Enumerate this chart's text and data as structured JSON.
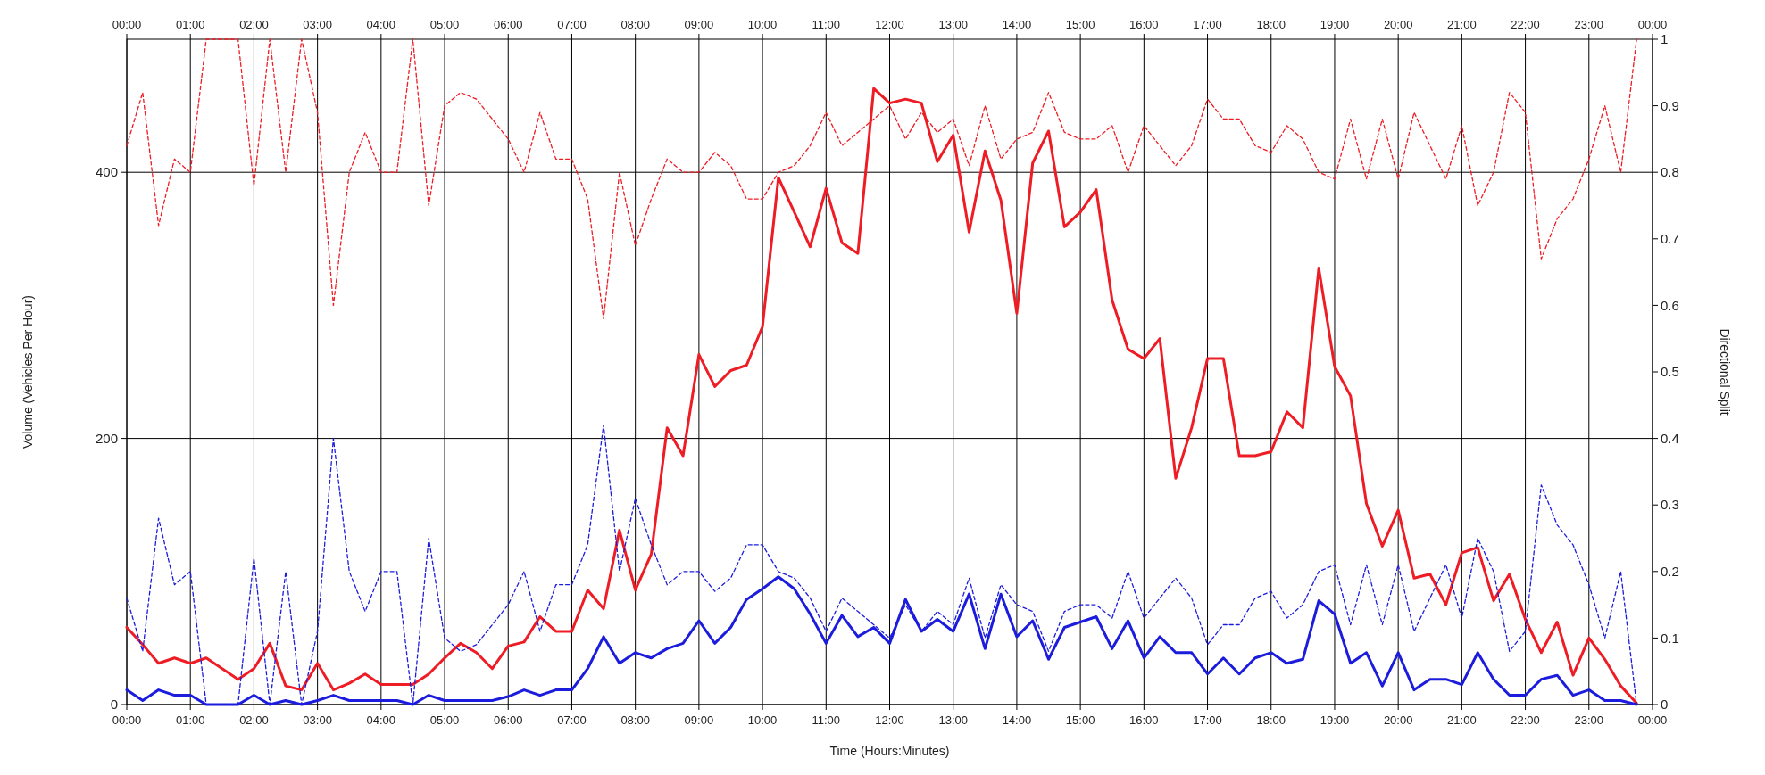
{
  "chart_data": {
    "type": "line",
    "xlabel": "Time (Hours:Minutes)",
    "ylabel": "Volume (Vehicles Per Hour)",
    "y2label": "Directional Split",
    "x": [
      0,
      0.25,
      0.5,
      0.75,
      1,
      1.25,
      1.5,
      1.75,
      2,
      2.25,
      2.5,
      2.75,
      3,
      3.25,
      3.5,
      3.75,
      4,
      4.25,
      4.5,
      4.75,
      5,
      5.25,
      5.5,
      5.75,
      6,
      6.25,
      6.5,
      6.75,
      7,
      7.25,
      7.5,
      7.75,
      8,
      8.25,
      8.5,
      8.75,
      9,
      9.25,
      9.5,
      9.75,
      10,
      10.25,
      10.5,
      10.75,
      11,
      11.25,
      11.5,
      11.75,
      12,
      12.25,
      12.5,
      12.75,
      13,
      13.25,
      13.5,
      13.75,
      14,
      14.25,
      14.5,
      14.75,
      15,
      15.25,
      15.5,
      15.75,
      16,
      16.25,
      16.5,
      16.75,
      17,
      17.25,
      17.5,
      17.75,
      18,
      18.25,
      18.5,
      18.75,
      19,
      19.25,
      19.5,
      19.75,
      20,
      20.25,
      20.5,
      20.75,
      21,
      21.25,
      21.5,
      21.75,
      22,
      22.25,
      22.5,
      22.75,
      23,
      23.25,
      23.5,
      23.75
    ],
    "series": [
      {
        "color": "#ee1c24",
        "line_style": "solid",
        "values": [
          58,
          45,
          31,
          35,
          31,
          35,
          27,
          19,
          27,
          46,
          14,
          11,
          31,
          11,
          16,
          23,
          15,
          15,
          15,
          23,
          35,
          46,
          39,
          27,
          44,
          47,
          66,
          55,
          55,
          86,
          72,
          131,
          86,
          113,
          208,
          187,
          263,
          239,
          251,
          255,
          284,
          396,
          370,
          344,
          388,
          347,
          339,
          463,
          452,
          455,
          452,
          408,
          428,
          355,
          416,
          379,
          294,
          407,
          431,
          359,
          370,
          387,
          304,
          267,
          260,
          275,
          170,
          208,
          260,
          260,
          187,
          187,
          190,
          220,
          208,
          328,
          254,
          232,
          151,
          119,
          146,
          95,
          98,
          75,
          114,
          118,
          78,
          98,
          64,
          39,
          62,
          22,
          50,
          34,
          14,
          1
        ]
      },
      {
        "color": "#1c1cdd",
        "line_style": "solid",
        "values": [
          11,
          3,
          11,
          7,
          7,
          0,
          0,
          0,
          7,
          0,
          3,
          0,
          3,
          7,
          3,
          3,
          3,
          3,
          0,
          7,
          3,
          3,
          3,
          3,
          6,
          11,
          7,
          11,
          11,
          27,
          51,
          31,
          39,
          35,
          42,
          46,
          63,
          46,
          58,
          79,
          87,
          96,
          87,
          68,
          46,
          67,
          51,
          58,
          46,
          79,
          55,
          64,
          55,
          83,
          42,
          83,
          51,
          63,
          34,
          58,
          62,
          66,
          42,
          63,
          35,
          51,
          39,
          39,
          23,
          35,
          23,
          35,
          39,
          31,
          34,
          78,
          68,
          31,
          39,
          14,
          39,
          11,
          19,
          19,
          15,
          39,
          19,
          7,
          7,
          19,
          22,
          7,
          11,
          3,
          3,
          0
        ]
      },
      {
        "color": "#ee1c24",
        "line_style": "dashed",
        "axis": "y2",
        "values": [
          0.84,
          0.92,
          0.72,
          0.82,
          0.8,
          1,
          1,
          1,
          0.78,
          1,
          0.8,
          1,
          0.89,
          0.6,
          0.8,
          0.86,
          0.8,
          0.8,
          1,
          0.75,
          0.9,
          0.92,
          0.91,
          0.88,
          0.85,
          0.8,
          0.89,
          0.82,
          0.82,
          0.76,
          0.58,
          0.8,
          0.69,
          0.76,
          0.82,
          0.8,
          0.8,
          0.83,
          0.81,
          0.76,
          0.76,
          0.8,
          0.81,
          0.84,
          0.89,
          0.84,
          0.86,
          0.88,
          0.9,
          0.85,
          0.89,
          0.86,
          0.88,
          0.81,
          0.9,
          0.82,
          0.85,
          0.86,
          0.92,
          0.86,
          0.85,
          0.85,
          0.87,
          0.8,
          0.87,
          0.84,
          0.81,
          0.84,
          0.91,
          0.88,
          0.88,
          0.84,
          0.83,
          0.87,
          0.85,
          0.8,
          0.79,
          0.88,
          0.79,
          0.88,
          0.79,
          0.89,
          0.84,
          0.79,
          0.87,
          0.75,
          0.8,
          0.92,
          0.89,
          0.67,
          0.73,
          0.76,
          0.82,
          0.9,
          0.8,
          1
        ]
      },
      {
        "color": "#1c1cdd",
        "line_style": "dashed",
        "axis": "y2",
        "values": [
          0.16,
          0.08,
          0.28,
          0.18,
          0.2,
          0,
          0,
          0,
          0.22,
          0,
          0.2,
          0,
          0.11,
          0.4,
          0.2,
          0.14,
          0.2,
          0.2,
          0,
          0.25,
          0.1,
          0.08,
          0.09,
          0.12,
          0.15,
          0.2,
          0.11,
          0.18,
          0.18,
          0.24,
          0.42,
          0.2,
          0.31,
          0.24,
          0.18,
          0.2,
          0.2,
          0.17,
          0.19,
          0.24,
          0.24,
          0.2,
          0.19,
          0.16,
          0.11,
          0.16,
          0.14,
          0.12,
          0.1,
          0.15,
          0.11,
          0.14,
          0.12,
          0.19,
          0.1,
          0.18,
          0.15,
          0.14,
          0.08,
          0.14,
          0.15,
          0.15,
          0.13,
          0.2,
          0.13,
          0.16,
          0.19,
          0.16,
          0.09,
          0.12,
          0.12,
          0.16,
          0.17,
          0.13,
          0.15,
          0.2,
          0.21,
          0.12,
          0.21,
          0.12,
          0.21,
          0.11,
          0.16,
          0.21,
          0.13,
          0.25,
          0.2,
          0.08,
          0.11,
          0.33,
          0.27,
          0.24,
          0.18,
          0.1,
          0.2,
          0
        ]
      }
    ],
    "xlim": [
      0,
      24
    ],
    "xticks": [
      {
        "value": 0,
        "label": "00:00"
      },
      {
        "value": 1,
        "label": "01:00"
      },
      {
        "value": 2,
        "label": "02:00"
      },
      {
        "value": 3,
        "label": "03:00"
      },
      {
        "value": 4,
        "label": "04:00"
      },
      {
        "value": 5,
        "label": "05:00"
      },
      {
        "value": 6,
        "label": "06:00"
      },
      {
        "value": 7,
        "label": "07:00"
      },
      {
        "value": 8,
        "label": "08:00"
      },
      {
        "value": 9,
        "label": "09:00"
      },
      {
        "value": 10,
        "label": "10:00"
      },
      {
        "value": 11,
        "label": "11:00"
      },
      {
        "value": 12,
        "label": "12:00"
      },
      {
        "value": 13,
        "label": "13:00"
      },
      {
        "value": 14,
        "label": "14:00"
      },
      {
        "value": 15,
        "label": "15:00"
      },
      {
        "value": 16,
        "label": "16:00"
      },
      {
        "value": 17,
        "label": "17:00"
      },
      {
        "value": 18,
        "label": "18:00"
      },
      {
        "value": 19,
        "label": "19:00"
      },
      {
        "value": 20,
        "label": "20:00"
      },
      {
        "value": 21,
        "label": "21:00"
      },
      {
        "value": 22,
        "label": "22:00"
      },
      {
        "value": 23,
        "label": "23:00"
      },
      {
        "value": 24,
        "label": "00:00"
      }
    ],
    "x2lim": [
      0,
      24
    ],
    "x2ticks": [
      {
        "value": 0,
        "label": "00:00"
      },
      {
        "value": 1,
        "label": "01:00"
      },
      {
        "value": 2,
        "label": "02:00"
      },
      {
        "value": 3,
        "label": "03:00"
      },
      {
        "value": 4,
        "label": "04:00"
      },
      {
        "value": 5,
        "label": "05:00"
      },
      {
        "value": 6,
        "label": "06:00"
      },
      {
        "value": 7,
        "label": "07:00"
      },
      {
        "value": 8,
        "label": "08:00"
      },
      {
        "value": 9,
        "label": "09:00"
      },
      {
        "value": 10,
        "label": "10:00"
      },
      {
        "value": 11,
        "label": "11:00"
      },
      {
        "value": 12,
        "label": "12:00"
      },
      {
        "value": 13,
        "label": "13:00"
      },
      {
        "value": 14,
        "label": "14:00"
      },
      {
        "value": 15,
        "label": "15:00"
      },
      {
        "value": 16,
        "label": "16:00"
      },
      {
        "value": 17,
        "label": "17:00"
      },
      {
        "value": 18,
        "label": "18:00"
      },
      {
        "value": 19,
        "label": "19:00"
      },
      {
        "value": 20,
        "label": "20:00"
      },
      {
        "value": 21,
        "label": "21:00"
      },
      {
        "value": 22,
        "label": "22:00"
      },
      {
        "value": 23,
        "label": "23:00"
      },
      {
        "value": 24,
        "label": "00:00"
      }
    ],
    "ylim": [
      0,
      500
    ],
    "yticks": [
      0,
      200,
      400
    ],
    "y2lim": [
      0,
      1
    ],
    "y2ticks": [
      0,
      0.1,
      0.2,
      0.3,
      0.4,
      0.5,
      0.6,
      0.7,
      0.8,
      0.9,
      1
    ],
    "grid": true
  }
}
